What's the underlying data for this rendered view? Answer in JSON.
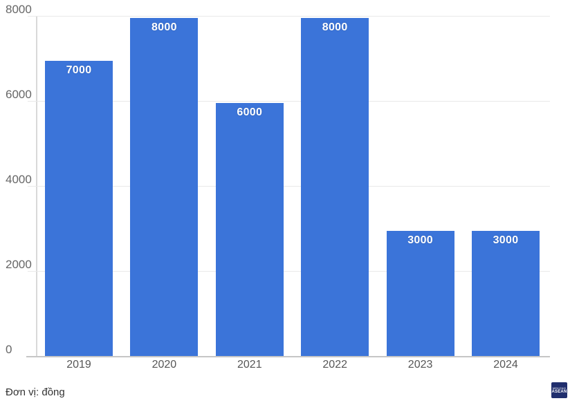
{
  "chart_data": {
    "type": "bar",
    "categories": [
      "2019",
      "2020",
      "2021",
      "2022",
      "2023",
      "2024"
    ],
    "values": [
      7000,
      8000,
      6000,
      8000,
      3000,
      3000
    ],
    "bar_labels": [
      "7000",
      "8000",
      "6000",
      "8000",
      "3000",
      "3000"
    ],
    "y_ticks": [
      0,
      2000,
      4000,
      6000,
      8000
    ],
    "y_tick_labels": [
      "0",
      "2000",
      "4000",
      "6000",
      "8000"
    ],
    "ylim": [
      0,
      8000
    ],
    "grid": "horizontal",
    "legend": "none",
    "title": "",
    "xlabel": "",
    "ylabel": "",
    "bar_color": "#3b74d9",
    "footnote": "Đơn vị: đồng",
    "logo": {
      "line1": "MEKONG",
      "line2": "ASEAN"
    }
  }
}
